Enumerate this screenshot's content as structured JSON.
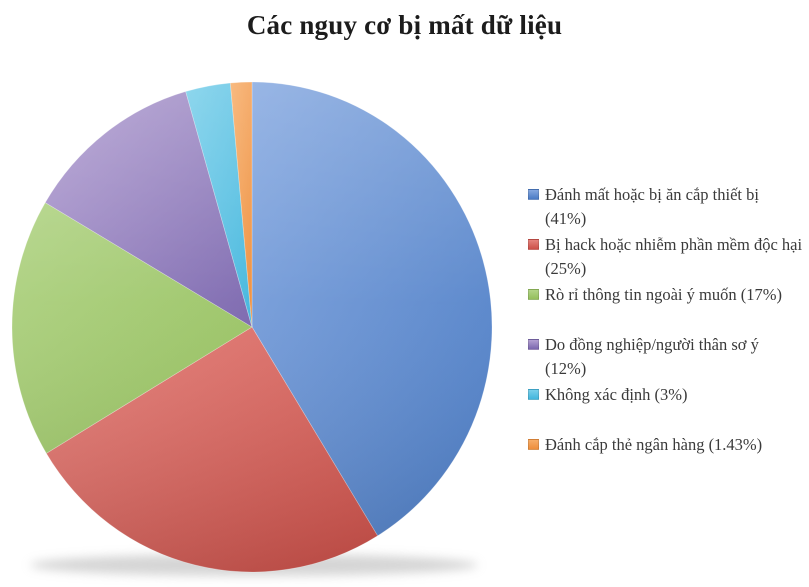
{
  "chart_data": {
    "type": "pie",
    "title": "Các nguy cơ bị mất dữ liệu",
    "legend_position": "right",
    "start_angle_deg": 0,
    "direction": "clockwise",
    "total": 99.43,
    "slices": [
      {
        "name": "Đánh mất hoặc bị ăn cắp thiết bị",
        "value": 41,
        "legend_label": "Đánh mất hoặc bị ăn cắp thiết bị (41%)",
        "color_light": "#85A8E0",
        "color_dark": "#4A7BC4"
      },
      {
        "name": "Bị hack hoặc nhiễm phần mềm độc hại",
        "value": 25,
        "legend_label": "Bị hack hoặc nhiễm phần mềm độc hại (25%)",
        "color_light": "#E5837D",
        "color_dark": "#CC4F48"
      },
      {
        "name": "Rò rỉ thông tin ngoài ý muốn",
        "value": 17,
        "legend_label": "Rò rỉ thông tin ngoài ý muốn (17%)",
        "color_light": "#B2D487",
        "color_dark": "#94BF5C"
      },
      {
        "name": "Do đồng nghiệp/người thân sơ ý",
        "value": 12,
        "legend_label": "Do đồng nghiệp/người thân sơ ý (12%)",
        "color_light": "#B3A0D2",
        "color_dark": "#7B67AE"
      },
      {
        "name": "Không xác định",
        "value": 3,
        "legend_label": "Không xác định (3%)",
        "color_light": "#79CFEA",
        "color_dark": "#43B6DD"
      },
      {
        "name": "Đánh cắp thẻ ngân hàng",
        "value": 1.43,
        "legend_label": "Đánh cắp thẻ ngân hàng (1.43%)",
        "color_light": "#F7AD68",
        "color_dark": "#EE8E3C"
      }
    ]
  }
}
